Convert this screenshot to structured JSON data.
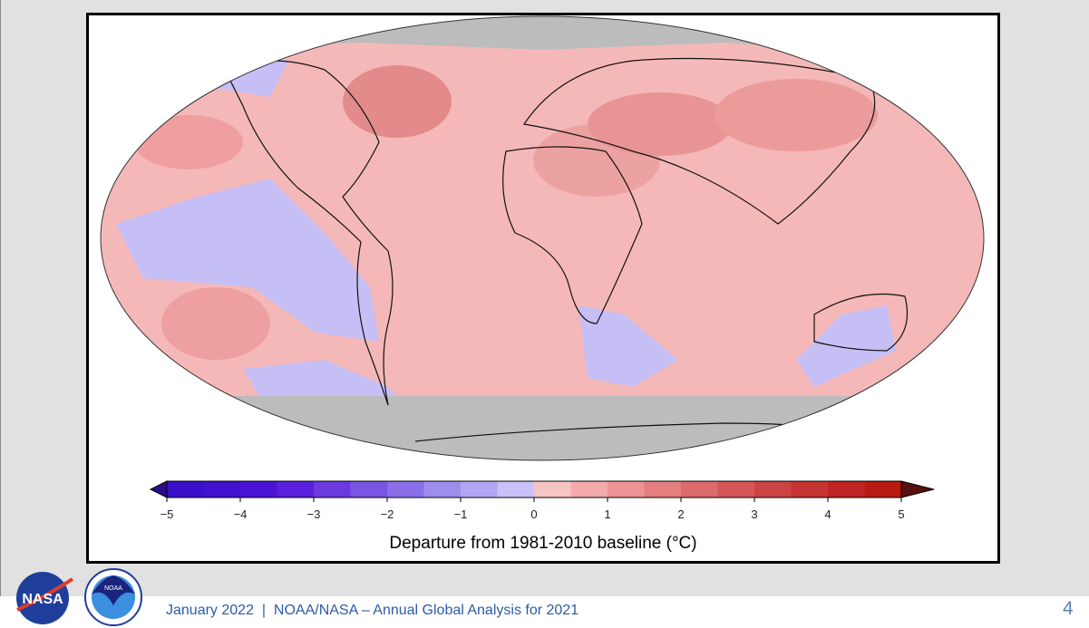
{
  "slide": {
    "footer_text": "January 2022  |  NOAA/NASA – Annual Global Analysis for 2021",
    "page_number": "4",
    "logos": [
      {
        "name": "nasa-logo",
        "text": "NASA"
      },
      {
        "name": "noaa-logo",
        "text": "NOAA"
      }
    ]
  },
  "map": {
    "projection": "Robinson",
    "missing_data_color": "#bcbcbc",
    "colorbar": {
      "title": "Departure from 1981-2010 baseline (°C)",
      "range": [
        -5,
        5
      ],
      "step": 0.5,
      "tick_labels": [
        "−5",
        "−4",
        "−3",
        "−2",
        "−1",
        "0",
        "1",
        "2",
        "3",
        "4",
        "5"
      ],
      "colors": [
        "#3a0fc9",
        "#4210cf",
        "#4a14d6",
        "#5a1fdc",
        "#6a3ae0",
        "#7a55e4",
        "#8a6ee8",
        "#9e8ced",
        "#b2a6f2",
        "#c8c2f8",
        "#f7c4c4",
        "#f2aaaa",
        "#ec9494",
        "#e47e7e",
        "#dc6a6a",
        "#d45656",
        "#cc4444",
        "#c63434",
        "#c02424",
        "#b81a12"
      ],
      "under_color": "#2a0a8c",
      "over_color": "#5a1010"
    }
  }
}
